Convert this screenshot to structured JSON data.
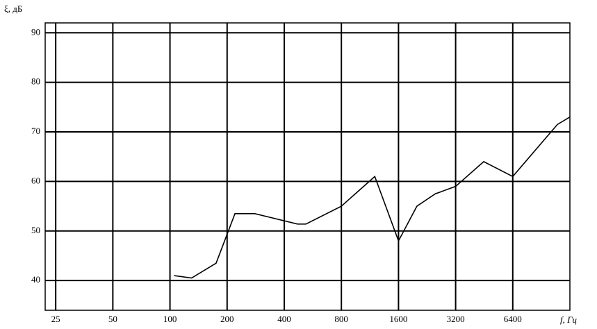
{
  "chart_data": {
    "type": "line",
    "y_label": "ξ, дБ",
    "x_label": "f, Гц",
    "x": [
      105,
      130,
      175,
      220,
      280,
      470,
      520,
      800,
      1200,
      1600,
      2000,
      2500,
      3200,
      4500,
      6400,
      11000,
      12800
    ],
    "series": [
      {
        "name": "ξ",
        "color": "#000000",
        "values": [
          41,
          40.5,
          43.5,
          53.5,
          53.5,
          51.4,
          51.4,
          55,
          61,
          48,
          55,
          57.5,
          59,
          64,
          61,
          71.5,
          73
        ]
      }
    ],
    "xscale": "log",
    "xlim": [
      22,
      12800
    ],
    "xticks": [
      25,
      50,
      100,
      200,
      400,
      800,
      1600,
      3200,
      6400
    ],
    "ylim": [
      34,
      92
    ],
    "yticks": [
      40,
      50,
      60,
      70,
      80,
      90
    ],
    "grid": true
  }
}
